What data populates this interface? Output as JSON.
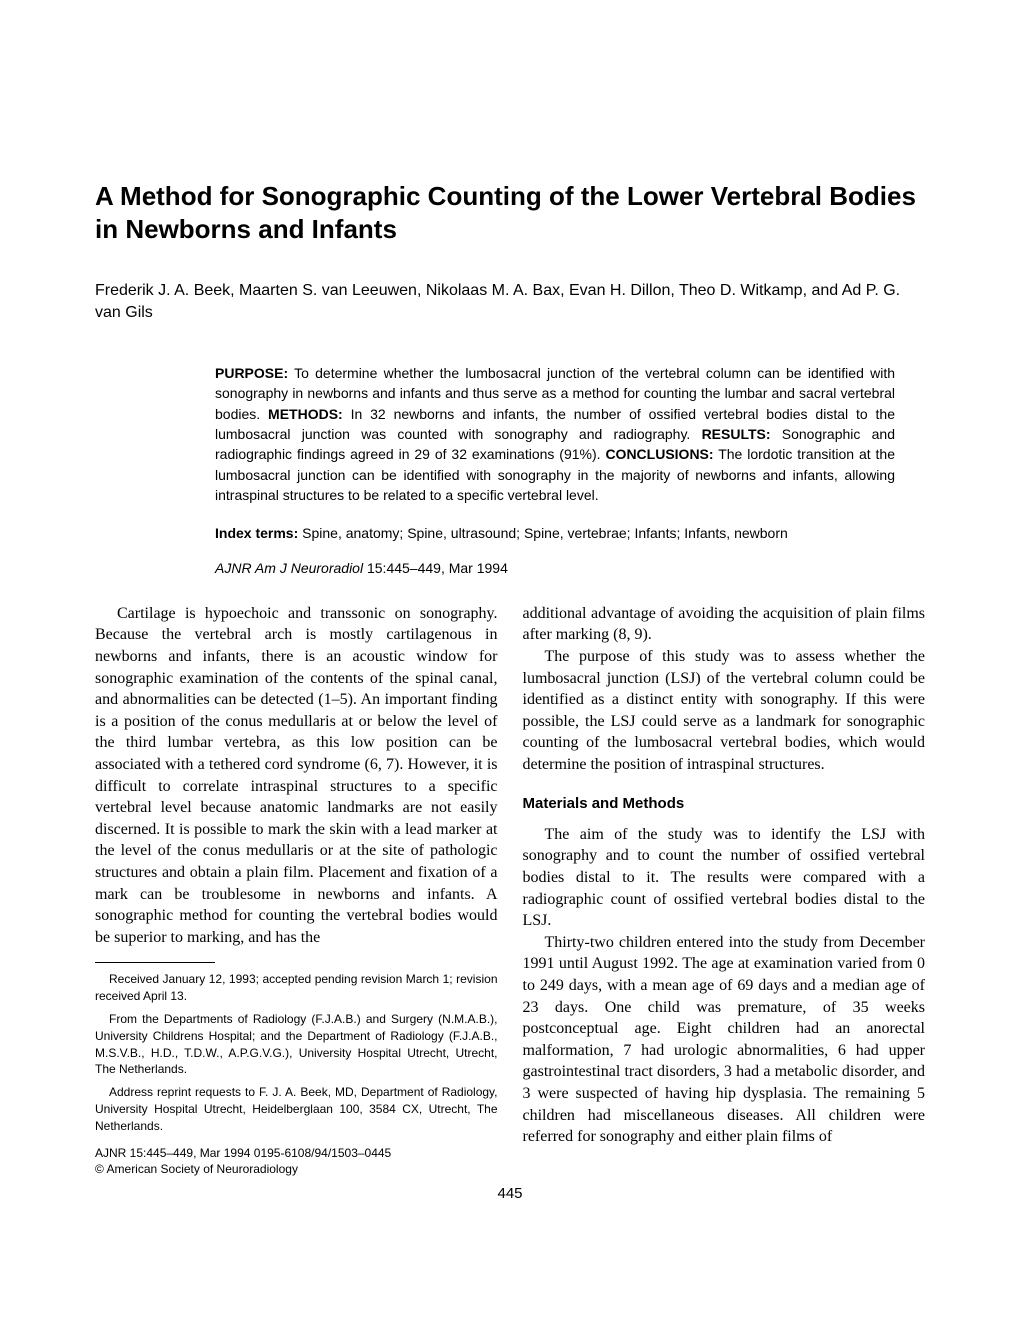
{
  "title": "A Method for Sonographic Counting of the Lower Vertebral Bodies in Newborns and Infants",
  "authors": "Frederik J. A. Beek, Maarten S. van Leeuwen, Nikolaas M. A. Bax, Evan H. Dillon, Theo D. Witkamp, and Ad P. G. van Gils",
  "abstract": {
    "purpose_label": "PURPOSE:",
    "purpose": " To determine whether the lumbosacral junction of the vertebral column can be identified with sonography in newborns and infants and thus serve as a method for counting the lumbar and sacral vertebral bodies. ",
    "methods_label": "METHODS:",
    "methods": " In 32 newborns and infants, the number of ossified vertebral bodies distal to the lumbosacral junction was counted with sonography and radiography. ",
    "results_label": "RESULTS:",
    "results": " Sonographic and radiographic findings agreed in 29 of 32 examinations (91%). ",
    "conclusions_label": "CONCLUSIONS:",
    "conclusions": " The lordotic transition at the lumbosacral junction can be identified with sonography in the majority of newborns and infants, allowing intraspinal structures to be related to a specific vertebral level."
  },
  "index_terms_label": "Index terms:",
  "index_terms": " Spine, anatomy; Spine, ultrasound; Spine, vertebrae; Infants; Infants, newborn",
  "citation_journal": "AJNR Am J Neuroradiol ",
  "citation_rest": "15:445–449, Mar 1994",
  "body": {
    "left_p1": "Cartilage is hypoechoic and transsonic on sonography. Because the vertebral arch is mostly cartilagenous in newborns and infants, there is an acoustic window for sonographic examination of the contents of the spinal canal, and abnormalities can be detected (1–5). An important finding is a position of the conus medullaris at or below the level of the third lumbar vertebra, as this low position can be associated with a tethered cord syndrome (6, 7). However, it is difficult to correlate intraspinal structures to a specific vertebral level because anatomic landmarks are not easily discerned. It is possible to mark the skin with a lead marker at the level of the conus medullaris or at the site of pathologic structures and obtain a plain film. Placement and fixation of a mark can be troublesome in newborns and infants. A sonographic method for counting the vertebral bodies would be superior to marking, and has the",
    "right_p1": "additional advantage of avoiding the acquisition of plain films after marking (8, 9).",
    "right_p2": "The purpose of this study was to assess whether the lumbosacral junction (LSJ) of the vertebral column could be identified as a distinct entity with sonography. If this were possible, the LSJ could serve as a landmark for sonographic counting of the lumbosacral vertebral bodies, which would determine the position of intraspinal structures.",
    "mm_heading": "Materials and Methods",
    "right_p3": "The aim of the study was to identify the LSJ with sonography and to count the number of ossified vertebral bodies distal to it. The results were compared with a radiographic count of ossified vertebral bodies distal to the LSJ.",
    "right_p4": "Thirty-two children entered into the study from December 1991 until August 1992. The age at examination varied from 0 to 249 days, with a mean age of 69 days and a median age of 23 days. One child was premature, of 35 weeks postconceptual age. Eight children had an anorectal malformation, 7 had urologic abnormalities, 6 had upper gastrointestinal tract disorders, 3 had a metabolic disorder, and 3 were suspected of having hip dysplasia. The remaining 5 children had miscellaneous diseases. All children were referred for sonography and either plain films of"
  },
  "footnotes": {
    "f1": "Received January 12, 1993; accepted pending revision March 1; revision received April 13.",
    "f2": "From the Departments of Radiology (F.J.A.B.) and Surgery (N.M.A.B.), University Childrens Hospital; and the Department of Radiology (F.J.A.B., M.S.V.B., H.D., T.D.W., A.P.G.V.G.), University Hospital Utrecht, Utrecht, The Netherlands.",
    "f3": "Address reprint requests to F. J. A. Beek, MD, Department of Radiology, University Hospital Utrecht, Heidelberglaan 100, 3584 CX, Utrecht, The Netherlands."
  },
  "journal_footer_line1": "AJNR 15:445–449, Mar 1994 0195-6108/94/1503–0445",
  "journal_footer_line2": "© American Society of Neuroradiology",
  "page_number": "445"
}
